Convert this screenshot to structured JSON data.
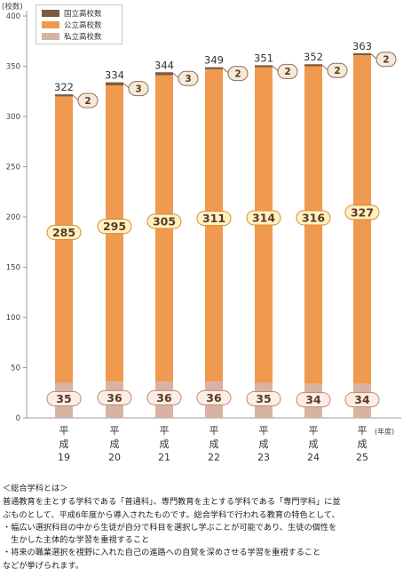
{
  "chart_data": {
    "type": "bar",
    "stacked": true,
    "ylabel": "(校数)",
    "xlabel": "(年度)",
    "ylim": [
      0,
      400
    ],
    "yticks": [
      0,
      50,
      100,
      150,
      200,
      250,
      300,
      350,
      400
    ],
    "categories": [
      {
        "era": "平",
        "sub": "成",
        "year": "19"
      },
      {
        "era": "平",
        "sub": "成",
        "year": "20"
      },
      {
        "era": "平",
        "sub": "成",
        "year": "21"
      },
      {
        "era": "平",
        "sub": "成",
        "year": "22"
      },
      {
        "era": "平",
        "sub": "成",
        "year": "23"
      },
      {
        "era": "平",
        "sub": "成",
        "year": "24"
      },
      {
        "era": "平",
        "sub": "成",
        "year": "25"
      }
    ],
    "series": [
      {
        "name": "私立高校数",
        "color": "#d8b3a3",
        "values": [
          35,
          36,
          36,
          36,
          35,
          34,
          34
        ]
      },
      {
        "name": "公立高校数",
        "color": "#ef9a4f",
        "values": [
          285,
          295,
          305,
          311,
          314,
          316,
          327
        ]
      },
      {
        "name": "国立高校数",
        "color": "#7d5a3d",
        "values": [
          2,
          3,
          3,
          2,
          2,
          2,
          2
        ]
      }
    ],
    "totals": [
      322,
      334,
      344,
      349,
      351,
      352,
      363
    ],
    "grid": false,
    "legend_position": "top-left"
  },
  "legend": [
    {
      "label": "国立高校数",
      "color": "#7d5a3d"
    },
    {
      "label": "公立高校数",
      "color": "#ef9a4f"
    },
    {
      "label": "私立高校数",
      "color": "#d8b3a3"
    }
  ],
  "note": {
    "title": "＜総合学科とは＞",
    "lines": [
      "普通教育を主とする学科である「普通科」、専門教育を主とする学科である「専門学科」に並",
      "ぶものとして、平成6年度から導入されたものです。総合学科で行われる教育の特色として、",
      "・幅広い選択科目の中から生徒が自分で科目を選択し学ぶことが可能であり、生徒の個性を",
      "　生かした主体的な学習を重視すること",
      "・将来の職業選択を視野に入れた自己の進路への自覚を深めさせる学習を重視すること",
      "などが挙げられます。"
    ]
  }
}
